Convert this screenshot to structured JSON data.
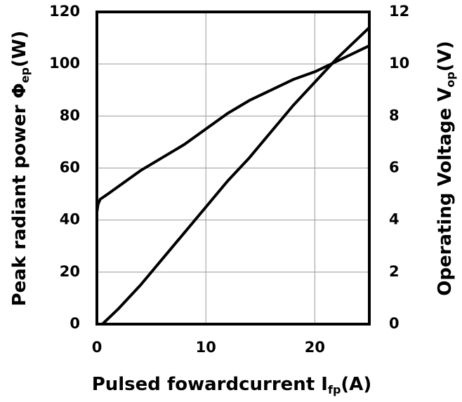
{
  "chart_data": {
    "type": "line",
    "x_label": {
      "text": "Pulsed  fowardcurrent  I",
      "sub": "fp",
      "unit": "(A)"
    },
    "y_label": {
      "text": "Peak radiant power  Φ",
      "sub": "ep",
      "unit": "(W)"
    },
    "y2_label": {
      "text": "Operating Voltage  V",
      "sub": "op",
      "unit": "(V)"
    },
    "xlim": [
      0,
      25
    ],
    "xticks": [
      0,
      10,
      20
    ],
    "ylim": [
      0,
      120
    ],
    "yticks": [
      0,
      20,
      40,
      60,
      80,
      100,
      120
    ],
    "y2lim": [
      0,
      12
    ],
    "y2ticks": [
      0,
      2,
      4,
      6,
      8,
      10,
      12
    ],
    "grid": true,
    "series": [
      {
        "color": "#000000",
        "x": [
          0.5,
          2,
          4,
          6,
          8,
          10,
          12,
          14,
          16,
          18,
          20,
          22,
          24,
          25
        ],
        "values": [
          0,
          6,
          15,
          25,
          35,
          45,
          55,
          64,
          74,
          84,
          93,
          102,
          110,
          114
        ]
      },
      {
        "color": "#000000",
        "axis": "y2",
        "x": [
          0,
          0.1,
          0.3,
          1,
          2,
          4,
          6,
          8,
          10,
          12,
          14,
          16,
          18,
          20,
          22,
          24,
          25
        ],
        "values": [
          4.3,
          4.6,
          4.8,
          5.0,
          5.3,
          5.9,
          6.4,
          6.9,
          7.5,
          8.1,
          8.6,
          9.0,
          9.4,
          9.7,
          10.1,
          10.5,
          10.7
        ]
      }
    ]
  }
}
